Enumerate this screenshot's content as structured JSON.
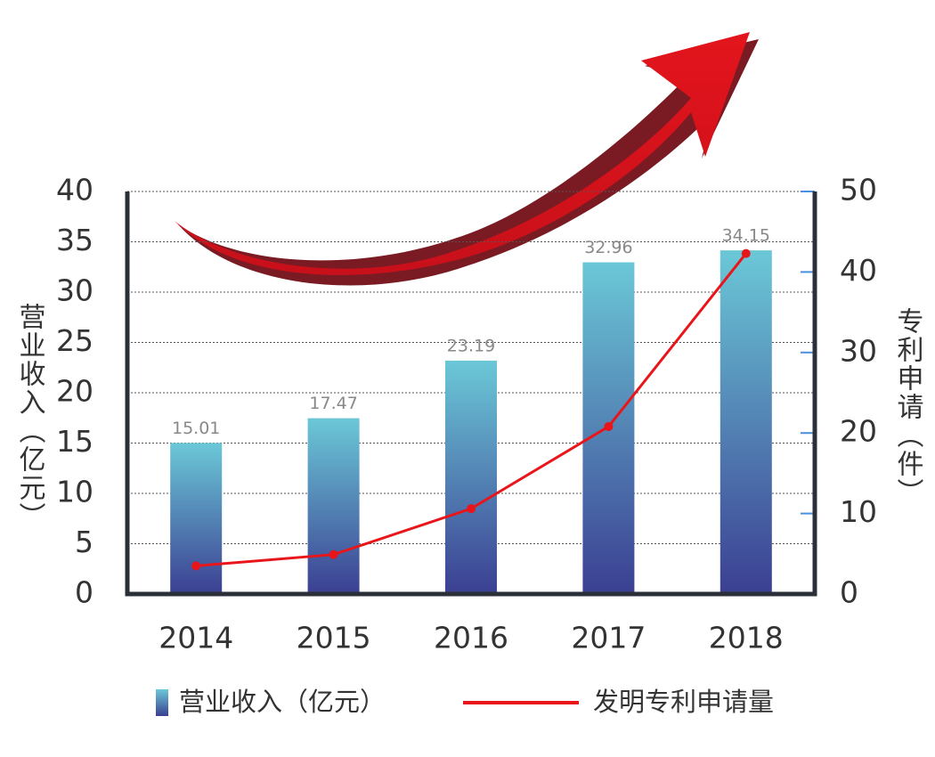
{
  "chart_data": {
    "type": "bar-line",
    "ylabel": "营业收入（亿元）",
    "y2label": "专利申请（件）",
    "categories": [
      "2014",
      "2015",
      "2016",
      "2017",
      "2018"
    ],
    "series": [
      {
        "name": "营业收入（亿元）",
        "type": "bar",
        "color": [
          "#6bc8d7",
          "#3b3f92"
        ],
        "values": [
          15.01,
          17.47,
          23.19,
          32.96,
          34.15
        ]
      },
      {
        "name": "发明专利申请量",
        "type": "line",
        "axis": "y2",
        "color": "#e8161b",
        "values": [
          3.5,
          4.9,
          10.6,
          20.8,
          42.3
        ]
      }
    ],
    "ylim": [
      0,
      40
    ],
    "yticks": [
      0,
      5,
      10,
      15,
      20,
      25,
      30,
      35,
      40
    ],
    "y2lim": [
      0,
      50
    ],
    "y2ticks": [
      0,
      10,
      20,
      30,
      40,
      50
    ],
    "grid": true
  }
}
